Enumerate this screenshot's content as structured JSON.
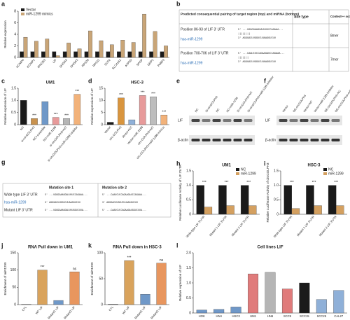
{
  "chart_data": [
    {
      "type": "bar",
      "panel": "a",
      "ylabel": "Relative expression",
      "categories": [
        "KCNIP4",
        "KCNIP1",
        "IPNOB3",
        "LIF",
        "SHISA4",
        "SHISA3",
        "RPS28",
        "RPS11",
        "SCP2",
        "SLC41A1",
        "ATP5D",
        "SPOP",
        "DDP1",
        "PMID3"
      ],
      "series": [
        {
          "name": "Vector",
          "color": "#1a1a1a",
          "values": [
            1,
            1,
            1,
            1,
            1,
            1,
            1,
            1,
            1,
            1,
            1,
            1,
            1,
            1
          ]
        },
        {
          "name": "miR-1299 mimics",
          "color": "#c9a577",
          "values": [
            3.5,
            2.8,
            3.2,
            0.3,
            2.5,
            1.5,
            4.6,
            2.9,
            2.2,
            3.0,
            2.6,
            7.5,
            4.5,
            2.0
          ]
        }
      ],
      "ylim": [
        0,
        8
      ],
      "yticks": [
        0,
        2,
        4,
        6,
        8
      ],
      "legend": "top-left"
    },
    {
      "type": "bar",
      "panel": "c",
      "title": "UM1",
      "ylabel": "Relative expression of LIF",
      "categories": [
        "NC",
        "si-circGOLPH3",
        "NC+scramble",
        "NC+miR-1299",
        "si-circGOLPH3+NC",
        "si-circGOLPH3+miR-1299 inhibitor"
      ],
      "values": [
        1.0,
        0.25,
        0.95,
        0.3,
        0.25,
        1.25
      ],
      "colors": [
        "#1a1a1a",
        "#c9924e",
        "#6f98c8",
        "#e79a9a",
        "#b5b5b5",
        "#f2b27a"
      ],
      "ylim": [
        0,
        1.5
      ],
      "yticks": [
        0,
        0.5,
        {
          "value": 1,
          "label": "1.0"
        },
        1.5
      ],
      "annotations": [
        {
          "text": "***",
          "category": "si-circGOLPH3"
        },
        {
          "text": "***",
          "category": "NC+miR-1299"
        },
        {
          "text": "***",
          "category": "si-circGOLPH3+NC"
        },
        {
          "text": "***",
          "category": "si-circGOLPH3+miR-1299 inhibitor"
        }
      ]
    },
    {
      "type": "bar",
      "panel": "d",
      "title": "HSC-3",
      "ylabel": "Relative expression of LIF",
      "categories": [
        "Vector",
        "circ-GOLPH3",
        "Vector+NC",
        "Vector+miR-1299",
        "circ-GOLPH3+NC",
        "circ-GOLPH3+miR-1299 mimics"
      ],
      "values": [
        1,
        11,
        2,
        12,
        11.5,
        4
      ],
      "colors": [
        "#1a1a1a",
        "#d9953e",
        "#8fb0d8",
        "#e79a9a",
        "#bdbdbd",
        "#f2b27a"
      ],
      "ylim": [
        0,
        15
      ],
      "yticks": [
        0,
        5,
        10,
        15
      ],
      "annotations": [
        {
          "text": "***",
          "category": "circ-GOLPH3"
        },
        {
          "text": "***",
          "category": "Vector+miR-1299"
        },
        {
          "text": "***",
          "category": "circ-GOLPH3+NC"
        },
        {
          "text": "***",
          "category": "circ-GOLPH3+miR-1299 mimics"
        }
      ]
    },
    {
      "type": "bar",
      "panel": "h",
      "title": "UM1",
      "ylabel": "Relative Luciferase Activity of LIF 3'UTR",
      "categories": [
        "Wide-type LIF 3'UTR",
        "Mutant 1 LIF 3'UTR",
        "Mutant 2 LIF 3'UTR"
      ],
      "series": [
        {
          "name": "NC",
          "color": "#1a1a1a",
          "values": [
            1,
            1,
            1
          ]
        },
        {
          "name": "miR-1299",
          "color": "#d4a060",
          "values": [
            0.25,
            0.3,
            0.3
          ]
        }
      ],
      "ylim": [
        0,
        1.5
      ],
      "yticks": [
        0,
        0.5,
        {
          "value": 1,
          "label": "1.0"
        },
        1.5
      ],
      "legend": "top-right",
      "annotations": [
        {
          "text": "***",
          "category": "Wide-type LIF 3'UTR"
        },
        {
          "text": "***",
          "category": "Mutant 1 LIF 3'UTR"
        },
        {
          "text": "***",
          "category": "Mutant 2 LIF 3'UTR"
        }
      ]
    },
    {
      "type": "bar",
      "panel": "i",
      "title": "HSC-3",
      "ylabel": "Relative Luciferase Activity of circGOLPH3",
      "categories": [
        "Wide-type LIF 3'UTR",
        "Mutant 1 LIF 3'UTR",
        "Mutant 2 LIF 3'UTR"
      ],
      "series": [
        {
          "name": "NC",
          "color": "#1a1a1a",
          "values": [
            1,
            1,
            1
          ]
        },
        {
          "name": "miR-1299",
          "color": "#d4a060",
          "values": [
            0.2,
            0.3,
            0.3
          ]
        }
      ],
      "ylim": [
        0,
        1.5
      ],
      "yticks": [
        0,
        0.5,
        {
          "value": 1,
          "label": "1.0"
        },
        1.5
      ],
      "legend": "top-right",
      "annotations": [
        {
          "text": "***",
          "category": "Wide-type LIF 3'UTR"
        },
        {
          "text": "***",
          "category": "Mutant 1 LIF 3'UTR"
        },
        {
          "text": "***",
          "category": "Mutant 2 LIF 3'UTR"
        }
      ]
    },
    {
      "type": "bar",
      "panel": "j",
      "title": "RNA Pull down in UM1",
      "ylabel": "Enrichment of miR1299",
      "categories": [
        "CTL",
        "WT LIF",
        "Mutant1 LIF",
        "Mutant2 LIF"
      ],
      "values": [
        1,
        100,
        12,
        95
      ],
      "colors": [
        "#8c8c8c",
        "#d9a35c",
        "#6f98c8",
        "#e8965e"
      ],
      "ylim": [
        0,
        150
      ],
      "yticks": [
        0,
        50,
        100,
        150
      ],
      "annotations": [
        {
          "text": "***",
          "category": "WT LIF"
        },
        {
          "text": "ns",
          "category": "Mutant2 LIF"
        }
      ]
    },
    {
      "type": "bar",
      "panel": "k",
      "title": "RNA Pull down in HSC-3",
      "ylabel": "Enrichment of miR1299",
      "categories": [
        "CTL",
        "WT LIF",
        "Mutant1 LIF",
        "Mutant2 LIF"
      ],
      "values": [
        1,
        85,
        20,
        80
      ],
      "colors": [
        "#8c8c8c",
        "#d9a35c",
        "#6f98c8",
        "#e8965e"
      ],
      "ylim": [
        0,
        100
      ],
      "yticks": [
        0,
        50,
        100
      ],
      "annotations": [
        {
          "text": "***",
          "category": "WT LIF"
        },
        {
          "text": "ns",
          "category": "Mutant2 LIF"
        }
      ]
    },
    {
      "type": "bar",
      "panel": "l",
      "title": "Cell lines LIF",
      "ylabel": "Relative expression of LIF",
      "categories": [
        "HOK",
        "HN4",
        "HSC3",
        "UM1",
        "HN6",
        "SCC9",
        "SCC15",
        "SCC25",
        "CAL27"
      ],
      "values": [
        0.1,
        0.12,
        0.2,
        1.3,
        1.35,
        0.8,
        1.0,
        0.45,
        0.75
      ],
      "colors": [
        "#6f98c8",
        "#6f98c8",
        "#6f98c8",
        "#e07b7b",
        "#b5b5b5",
        "#e07b7b",
        "#1a1a1a",
        "#8fb0d8",
        "#8fb0d8"
      ],
      "ylim": [
        0,
        2
      ],
      "yticks": [
        0,
        0.5,
        {
          "value": 1,
          "label": "1.0"
        },
        1.5,
        {
          "value": 2,
          "label": "2.0"
        }
      ]
    }
  ],
  "table_b": {
    "panel": "b",
    "headers": [
      "Predicted consequential pairing of target region (top) and miRNA (bottom)",
      "Site type",
      "Context++ score"
    ],
    "rows": [
      {
        "region": "Position 86-93 of LIF 3' UTR",
        "mirna": "hsa-miR-1299",
        "pairing": [
          "5' ...UGGGGAAGGAUUUUCCAGAAA...",
          "||||||||",
          "3' AGGGACUUGGUCUUAAGGUCUU"
        ],
        "site": "8mer"
      },
      {
        "region": "Position 700-706 of LIF 3' UTR",
        "mirna": "hsa-miR-1299",
        "pairing": [
          "5' ...CAAUCUCCAGAAGAUCCAGAAA...",
          "|||||||",
          "3' AGGGACUUGGUCUUAAGGUCUU"
        ],
        "site": "7mer"
      }
    ]
  },
  "blot_e": {
    "panel": "e",
    "lanes": [
      "NC",
      "Si-circGOLPH3",
      "NC",
      "NC+miR-1299",
      "Si-circGOLPH3+NC",
      "Si-circGOLPH3+miR-1299 inhibitor"
    ],
    "rows": [
      "LIF",
      "β-actin"
    ]
  },
  "blot_f": {
    "panel": "f",
    "lanes": [
      "Vector",
      "OE-circGOLPH3",
      "Vector+NC",
      "Vector+miR-1299 inhibitor",
      "OE-circGOLPH3+NC",
      "OE-circGOLPH3+miR-1299 mimics"
    ],
    "rows": [
      "LIF",
      "β-actin"
    ]
  },
  "diagram_g": {
    "panel": "g",
    "sites": [
      "Mutation site 1",
      "Mutation site 2"
    ],
    "rows": [
      {
        "label": "Wide type LIF 3' UTR",
        "seqs": [
          "5' ...UGGGGAAGGAUUUUCCAGAAA...",
          "5' ...CAAUCUCCAGAAGAUCCAGAAA..."
        ]
      },
      {
        "label": "hsa-miR-1299",
        "seqs": [
          "3' AGGGACUUGGUCUUAAGGUCUU",
          "3' AGGGACUUGGUCUUAAGGUCUU"
        ]
      },
      {
        "label": "Mutant LIF 3' UTR",
        "seqs": [
          "5' ...UGGGGAAGGAUUUUGGUCUUA...",
          "5' ...CAAUCUCCAGAAGAUGGUCUUA..."
        ]
      }
    ]
  }
}
